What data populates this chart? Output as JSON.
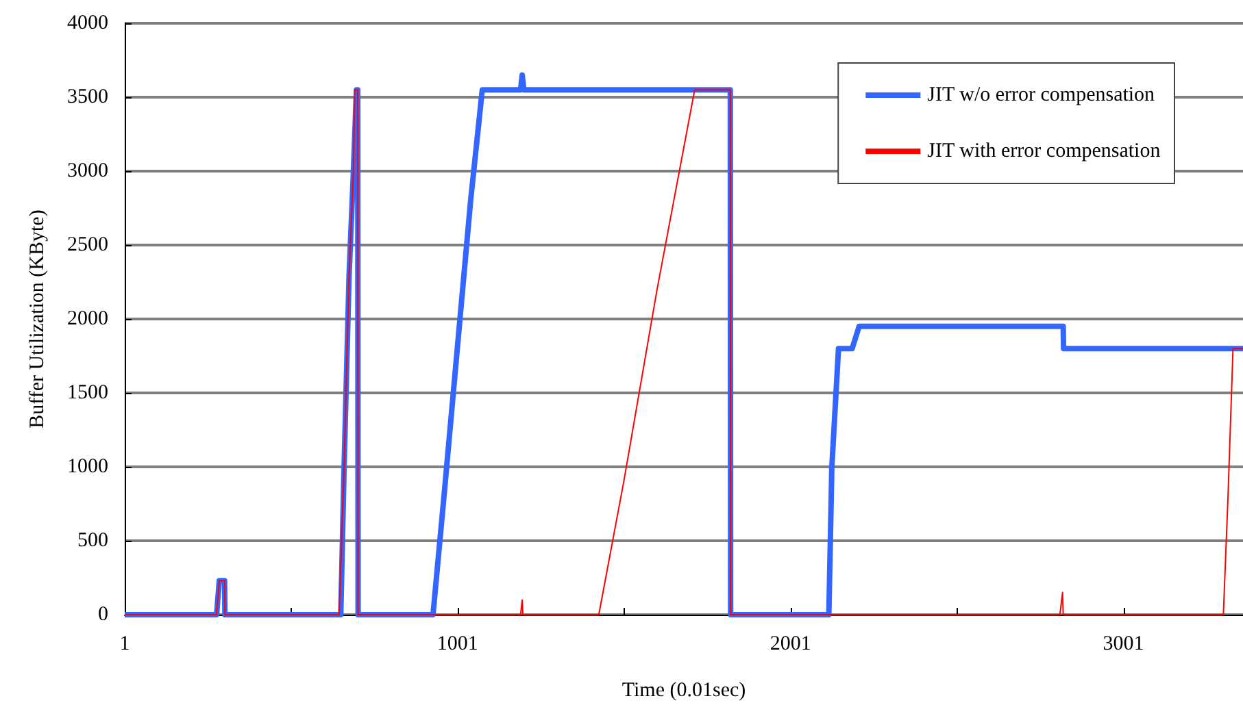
{
  "chart_data": {
    "type": "line",
    "xlabel": "Time (0.01sec)",
    "ylabel": "Buffer Utilization (KByte)",
    "xlim": [
      1,
      3360
    ],
    "xticks": [
      1,
      {
        "value": 501,
        "label": null
      },
      1001,
      {
        "value": 1501,
        "label": null
      },
      2001,
      {
        "value": 2501,
        "label": null
      },
      3001
    ],
    "ylim": [
      0,
      4000
    ],
    "yticks": [
      0,
      500,
      1000,
      1500,
      2000,
      2500,
      3000,
      3500,
      4000
    ],
    "grid": "y",
    "legend": "top right",
    "marker": "none",
    "line_style": "solid",
    "series": [
      {
        "name": "JIT w/o error compensation",
        "color": "#3366ff",
        "x": [
          1,
          277,
          285,
          289,
          301,
          302,
          650,
          660,
          675,
          688,
          697,
          701,
          702,
          927,
          960,
          1000,
          1040,
          1075,
          1190,
          1195,
          1200,
          1820,
          1821,
          2116,
          2125,
          2145,
          2186,
          2207,
          2820,
          2821,
          3360
        ],
        "values": [
          0,
          0,
          230,
          230,
          230,
          0,
          0,
          1000,
          2300,
          3000,
          3550,
          3550,
          0,
          0,
          800,
          1800,
          2800,
          3550,
          3550,
          3650,
          3550,
          3550,
          0,
          0,
          1000,
          1800,
          1800,
          1950,
          1950,
          1800,
          1800
        ]
      },
      {
        "name": "JIT with error compensation",
        "color": "#ff0000",
        "x": [
          1,
          277,
          285,
          289,
          301,
          302,
          645,
          660,
          675,
          688,
          692,
          701,
          702,
          1190,
          1195,
          1197,
          1425,
          1500,
          1600,
          1713,
          1820,
          1821,
          2810,
          2818,
          2820,
          3301,
          3315,
          3330,
          3360
        ],
        "values": [
          0,
          0,
          230,
          230,
          230,
          0,
          0,
          1000,
          2300,
          3000,
          3550,
          3550,
          0,
          0,
          100,
          0,
          0,
          900,
          2200,
          3550,
          3550,
          0,
          0,
          150,
          0,
          0,
          800,
          1800,
          1800
        ]
      }
    ]
  }
}
